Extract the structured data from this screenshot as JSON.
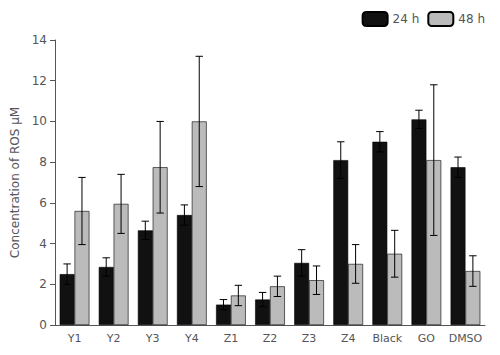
{
  "chart_data": {
    "type": "bar",
    "categories": [
      "Y1",
      "Y2",
      "Y3",
      "Y4",
      "Z1",
      "Z2",
      "Z3",
      "Z4",
      "Black",
      "GO",
      "DMSO"
    ],
    "series": [
      {
        "name": "24 h",
        "color": "#111111",
        "values": [
          2.5,
          2.85,
          4.65,
          5.4,
          1.0,
          1.25,
          3.05,
          8.1,
          9.0,
          10.1,
          7.75
        ],
        "errors": [
          0.5,
          0.45,
          0.45,
          0.5,
          0.25,
          0.35,
          0.65,
          0.9,
          0.5,
          0.45,
          0.5
        ]
      },
      {
        "name": "48 h",
        "color": "#bbbbbb",
        "values": [
          5.6,
          5.95,
          7.75,
          10.0,
          1.45,
          1.9,
          2.2,
          3.0,
          3.5,
          8.1,
          2.65
        ],
        "errors": [
          1.65,
          1.45,
          2.25,
          3.2,
          0.5,
          0.5,
          0.7,
          0.95,
          1.15,
          3.7,
          0.75
        ]
      }
    ],
    "ylabel": "Concentration of ROS μM",
    "ylim": [
      0,
      14
    ],
    "yticks": [
      0,
      2,
      4,
      6,
      8,
      10,
      12,
      14
    ],
    "grid": false,
    "legend": "upper right"
  }
}
